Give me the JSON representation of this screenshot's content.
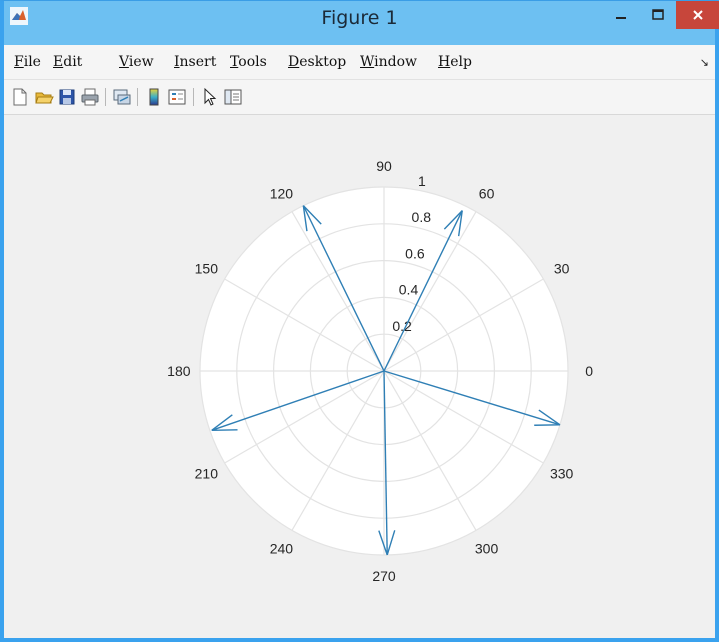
{
  "window": {
    "title": "Figure 1",
    "colors": {
      "titlebar": "#6dc0f2",
      "close": "#c7463b",
      "border": "#3aa2ee"
    }
  },
  "menu": {
    "items": [
      {
        "mnemonic": "F",
        "rest": "ile"
      },
      {
        "mnemonic": "E",
        "rest": "dit"
      },
      {
        "mnemonic": "V",
        "rest": "iew"
      },
      {
        "mnemonic": "I",
        "rest": "nsert"
      },
      {
        "mnemonic": "T",
        "rest": "ools"
      },
      {
        "mnemonic": "D",
        "rest": "esktop"
      },
      {
        "mnemonic": "W",
        "rest": "indow"
      },
      {
        "mnemonic": "H",
        "rest": "elp"
      }
    ]
  },
  "toolbar": {
    "icons": [
      "new-figure-icon",
      "open-file-icon",
      "save-figure-icon",
      "print-figure-icon",
      "link-plot-icon",
      "insert-colorbar-icon",
      "insert-legend-icon",
      "edit-plot-icon",
      "property-inspector-icon"
    ]
  },
  "chart_data": {
    "type": "polar",
    "angular_ticks": [
      "0",
      "30",
      "60",
      "90",
      "120",
      "150",
      "180",
      "210",
      "240",
      "270",
      "300",
      "330"
    ],
    "radial_ticks": [
      "0.2",
      "0.4",
      "0.6",
      "0.8",
      "1"
    ],
    "rlim": [
      0,
      1
    ],
    "grid": true,
    "line_color": "#2f7fb5",
    "arrows": [
      {
        "theta_deg": 64,
        "r": 0.97
      },
      {
        "theta_deg": 116,
        "r": 1.0
      },
      {
        "theta_deg": 199,
        "r": 0.99
      },
      {
        "theta_deg": 271,
        "r": 1.0
      },
      {
        "theta_deg": 343,
        "r": 1.0
      }
    ]
  }
}
